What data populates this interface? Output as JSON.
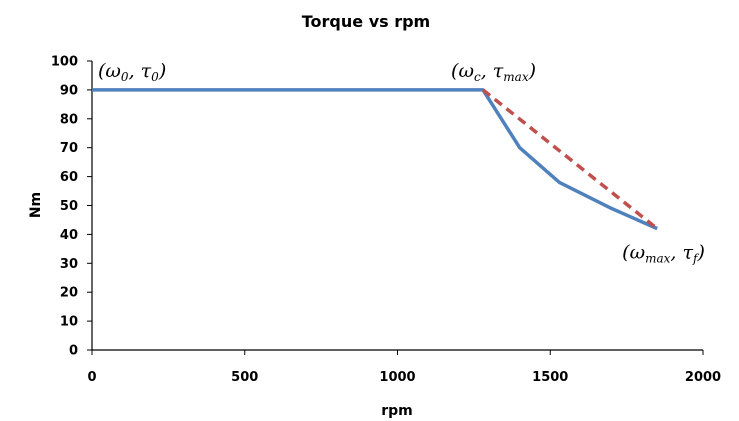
{
  "chart_data": {
    "type": "line",
    "title": "Torque vs rpm",
    "xlabel": "rpm",
    "ylabel": "Nm",
    "xlim": [
      0,
      2000
    ],
    "ylim": [
      0,
      100
    ],
    "x_ticks": [
      0,
      500,
      1000,
      1500,
      2000
    ],
    "y_ticks": [
      0,
      10,
      20,
      30,
      40,
      50,
      60,
      70,
      80,
      90,
      100
    ],
    "grid": false,
    "legend": "none",
    "series": [
      {
        "style": "solid",
        "color": "#4f81bd",
        "points": [
          [
            0,
            90
          ],
          [
            1280,
            90
          ],
          [
            1400,
            70
          ],
          [
            1530,
            58
          ],
          [
            1700,
            49
          ],
          [
            1850,
            42
          ]
        ]
      },
      {
        "style": "dashed",
        "color": "#c0504d",
        "points": [
          [
            1280,
            90
          ],
          [
            1850,
            42
          ]
        ]
      }
    ],
    "annotations": [
      {
        "id": "start",
        "x": 0,
        "y": 90,
        "symbol": "ω",
        "sub": "0",
        "symbol2": "τ",
        "sub2": "0"
      },
      {
        "id": "corner",
        "x": 1280,
        "y": 90,
        "symbol": "ω",
        "sub": "c",
        "symbol2": "τ",
        "sub2": "max"
      },
      {
        "id": "end",
        "x": 1850,
        "y": 42,
        "symbol": "ω",
        "sub": "max",
        "symbol2": "τ",
        "sub2": "f"
      }
    ]
  }
}
